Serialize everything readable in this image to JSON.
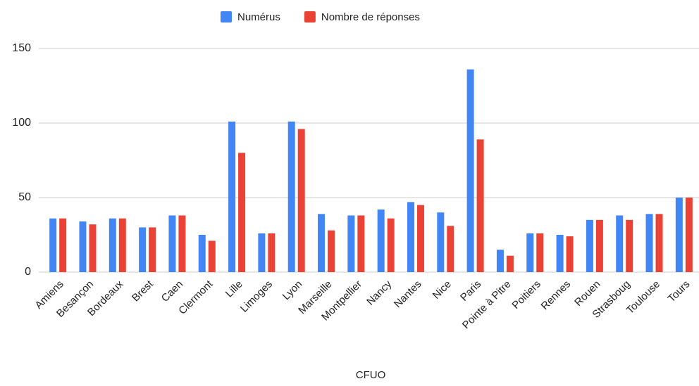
{
  "chart_data": {
    "type": "bar",
    "x_label": "CFUO",
    "categories": [
      "Amiens",
      "Besançon",
      "Bordeaux",
      "Brest",
      "Caen",
      "Clermont",
      "Lille",
      "Limoges",
      "Lyon",
      "Marseille",
      "Montpellier",
      "Nancy",
      "Nantes",
      "Nice",
      "Paris",
      "Pointe à Pitre",
      "Poitiers",
      "Rennes",
      "Rouen",
      "Strasboug",
      "Toulouse",
      "Tours"
    ],
    "series": [
      {
        "name": "Numérus",
        "color": "#4285f4",
        "values": [
          36,
          34,
          36,
          30,
          38,
          25,
          101,
          26,
          101,
          39,
          38,
          42,
          47,
          40,
          136,
          15,
          26,
          25,
          35,
          38,
          39,
          50
        ]
      },
      {
        "name": "Nombre de réponses",
        "color": "#ea4335",
        "values": [
          36,
          32,
          36,
          30,
          38,
          21,
          80,
          26,
          96,
          28,
          38,
          36,
          45,
          31,
          89,
          11,
          26,
          24,
          35,
          35,
          39,
          50
        ]
      }
    ],
    "ylim": [
      0,
      150
    ],
    "yticks": [
      0,
      50,
      100,
      150
    ],
    "grid": true,
    "legend": "top"
  }
}
